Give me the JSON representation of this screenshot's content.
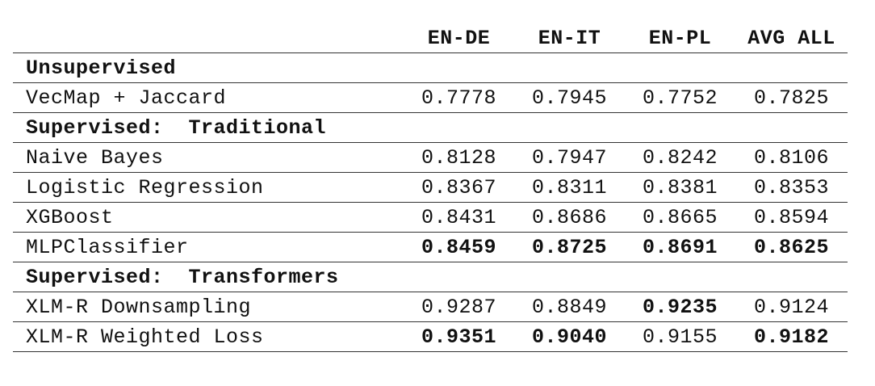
{
  "table": {
    "columns": [
      "EN-DE",
      "EN-IT",
      "EN-PL",
      "AVG ALL"
    ],
    "sections": [
      {
        "title": "Unsupervised",
        "rows": [
          {
            "name": "VecMap + Jaccard",
            "values": [
              "0.7778",
              "0.7945",
              "0.7752",
              "0.7825"
            ],
            "bold": [
              false,
              false,
              false,
              false
            ]
          }
        ]
      },
      {
        "title": "Supervised:  Traditional",
        "rows": [
          {
            "name": "Naive Bayes",
            "values": [
              "0.8128",
              "0.7947",
              "0.8242",
              "0.8106"
            ],
            "bold": [
              false,
              false,
              false,
              false
            ]
          },
          {
            "name": "Logistic Regression",
            "values": [
              "0.8367",
              "0.8311",
              "0.8381",
              "0.8353"
            ],
            "bold": [
              false,
              false,
              false,
              false
            ]
          },
          {
            "name": "XGBoost",
            "values": [
              "0.8431",
              "0.8686",
              "0.8665",
              "0.8594"
            ],
            "bold": [
              false,
              false,
              false,
              false
            ]
          },
          {
            "name": "MLPClassifier",
            "values": [
              "0.8459",
              "0.8725",
              "0.8691",
              "0.8625"
            ],
            "bold": [
              true,
              true,
              true,
              true
            ]
          }
        ]
      },
      {
        "title": "Supervised:  Transformers",
        "rows": [
          {
            "name": "XLM-R Downsampling",
            "values": [
              "0.9287",
              "0.8849",
              "0.9235",
              "0.9124"
            ],
            "bold": [
              false,
              false,
              true,
              false
            ]
          },
          {
            "name": "XLM-R Weighted Loss",
            "values": [
              "0.9351",
              "0.9040",
              "0.9155",
              "0.9182"
            ],
            "bold": [
              true,
              true,
              false,
              true
            ]
          }
        ]
      }
    ]
  }
}
